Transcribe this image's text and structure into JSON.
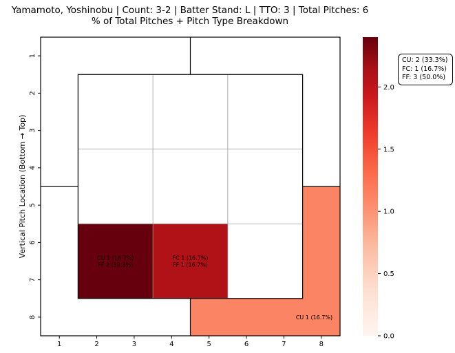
{
  "chart_data": {
    "type": "heatmap",
    "title": "Yamamoto, Yoshinobu | Count: 3-2 | Batter Stand: L | TTO: 3 | Total Pitches: 6",
    "subtitle": "% of Total Pitches + Pitch Type Breakdown",
    "ylabel": "Vertical Pitch Location (Bottom → Top)",
    "xlabel": "",
    "x_ticks": [
      "1",
      "2",
      "3",
      "4",
      "5",
      "6",
      "7",
      "8"
    ],
    "y_ticks": [
      "1",
      "2",
      "3",
      "4",
      "5",
      "6",
      "7",
      "8"
    ],
    "colormap": "Reds",
    "colorbar": {
      "min": 0.0,
      "max": 2.4,
      "ticks": [
        "0.0",
        "0.5",
        "1.0",
        "1.5",
        "2.0"
      ]
    },
    "cells": [
      {
        "zone": "inner-bottom-left",
        "value": 2.4,
        "color": "#67000d",
        "labels": [
          "CU 1 (16.7%)",
          "FF 2 (33.3%)"
        ]
      },
      {
        "zone": "inner-bottom-middle",
        "value": 2.0,
        "color": "#b01217",
        "labels": [
          "FC 1 (16.7%)",
          "FF 1 (16.7%)"
        ]
      },
      {
        "zone": "outer-bottom-right",
        "value": 1.0,
        "color": "#fb8464",
        "labels": [
          "CU 1 (16.7%)"
        ]
      }
    ]
  },
  "legend": {
    "items": [
      "CU: 2 (33.3%)",
      "FC: 1 (16.7%)",
      "FF: 3 (50.0%)"
    ]
  }
}
